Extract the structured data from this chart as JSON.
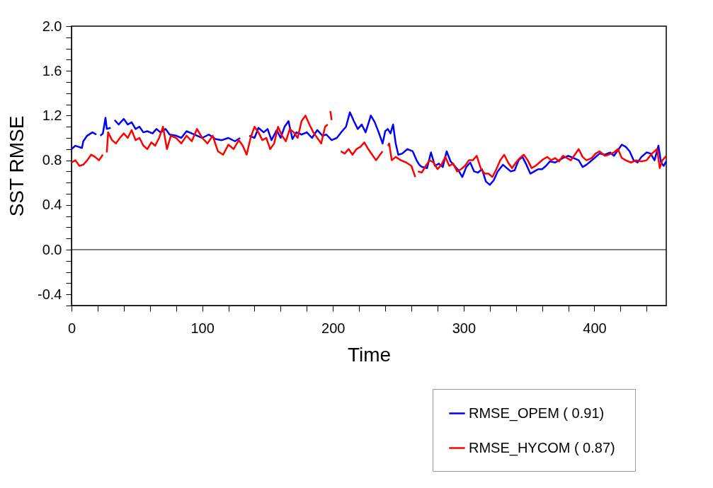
{
  "chart_data": {
    "type": "line",
    "xlabel": "Time",
    "ylabel": "SST RMSE",
    "xlim": [
      0,
      455
    ],
    "ylim": [
      -0.5,
      2.0
    ],
    "xticks": [
      0,
      {
        "value": 20,
        "label": null
      },
      {
        "value": 40,
        "label": null
      },
      {
        "value": 60,
        "label": null
      },
      {
        "value": 80,
        "label": null
      },
      100,
      {
        "value": 120,
        "label": null
      },
      {
        "value": 140,
        "label": null
      },
      {
        "value": 160,
        "label": null
      },
      {
        "value": 180,
        "label": null
      },
      200,
      {
        "value": 220,
        "label": null
      },
      {
        "value": 240,
        "label": null
      },
      {
        "value": 260,
        "label": null
      },
      {
        "value": 280,
        "label": null
      },
      300,
      {
        "value": 320,
        "label": null
      },
      {
        "value": 340,
        "label": null
      },
      {
        "value": 360,
        "label": null
      },
      {
        "value": 380,
        "label": null
      },
      400,
      {
        "value": 420,
        "label": null
      },
      {
        "value": 440,
        "label": null
      }
    ],
    "yticks": [
      {
        "value": -0.5,
        "label": null
      },
      {
        "value": -0.4,
        "label": "-0.4"
      },
      {
        "value": -0.3,
        "label": null
      },
      {
        "value": -0.2,
        "label": null
      },
      {
        "value": -0.1,
        "label": null
      },
      {
        "value": 0,
        "label": "0.0"
      },
      {
        "value": 0.1,
        "label": null
      },
      {
        "value": 0.2,
        "label": null
      },
      {
        "value": 0.3,
        "label": null
      },
      {
        "value": 0.4,
        "label": "0.4"
      },
      {
        "value": 0.5,
        "label": null
      },
      {
        "value": 0.6,
        "label": null
      },
      {
        "value": 0.7,
        "label": null
      },
      {
        "value": 0.8,
        "label": "0.8"
      },
      {
        "value": 0.9,
        "label": null
      },
      {
        "value": 1.0,
        "label": null
      },
      {
        "value": 1.1,
        "label": null
      },
      {
        "value": 1.2,
        "label": "1.2"
      },
      {
        "value": 1.3,
        "label": null
      },
      {
        "value": 1.4,
        "label": null
      },
      {
        "value": 1.5,
        "label": null
      },
      {
        "value": 1.6,
        "label": "1.6"
      },
      {
        "value": 1.7,
        "label": null
      },
      {
        "value": 1.8,
        "label": null
      },
      {
        "value": 1.9,
        "label": null
      },
      {
        "value": 2.0,
        "label": "2.0"
      }
    ],
    "grid": false,
    "legend": "bottom right",
    "marker": "none",
    "line_style": "solid",
    "ref_lines": [
      {
        "axis": "y",
        "value": 0,
        "label": null,
        "color": "#000000"
      }
    ],
    "series": [
      {
        "name": "RMSE_OPEM (  0.91)",
        "color": "#0000ff",
        "x": [
          0,
          3,
          8,
          9,
          12,
          16,
          19,
          20,
          22,
          24,
          26,
          27,
          30,
          31,
          33,
          36,
          40,
          43,
          46,
          49,
          52,
          55,
          58,
          62,
          65,
          68,
          72,
          75,
          80,
          84,
          88,
          92,
          96,
          100,
          105,
          110,
          115,
          120,
          125,
          129,
          132,
          136,
          140,
          143,
          147,
          150,
          153,
          157,
          160,
          163,
          166,
          169,
          172,
          176,
          180,
          184,
          188,
          192,
          195,
          199,
          203,
          207,
          210,
          213,
          216,
          219,
          222,
          225,
          229,
          232,
          235,
          238,
          240,
          242,
          244,
          246,
          248,
          250,
          253,
          257,
          261,
          264,
          266,
          268,
          272,
          275,
          278,
          281,
          284,
          287,
          290,
          293,
          296,
          299,
          302,
          305,
          308,
          311,
          314,
          317,
          320,
          323,
          326,
          330,
          333,
          336,
          339,
          342,
          345,
          348,
          351,
          354,
          357,
          360,
          363,
          366,
          370,
          373,
          376,
          380,
          384,
          388,
          391,
          394,
          397,
          400,
          404,
          408,
          412,
          415,
          418,
          421,
          424,
          427,
          430,
          433,
          436,
          440,
          443,
          446,
          449,
          451,
          453,
          455
        ],
        "values": [
          0.9,
          0.93,
          0.91,
          0.97,
          1.02,
          1.05,
          1.03,
          null,
          1.02,
          1.04,
          1.18,
          1.08,
          1.09,
          null,
          1.16,
          1.12,
          1.17,
          1.12,
          1.14,
          1.08,
          1.1,
          1.05,
          1.06,
          1.04,
          1.08,
          1.05,
          1.08,
          1.03,
          1.02,
          1.0,
          1.06,
          1.04,
          1.02,
          1.0,
          1.03,
          0.99,
          0.98,
          1.0,
          0.97,
          1.0,
          null,
          1.02,
          1.0,
          1.09,
          1.05,
          1.08,
          0.98,
          1.07,
          1.0,
          1.1,
          1.15,
          0.99,
          1.05,
          1.03,
          1.05,
          1.0,
          1.07,
          1.02,
          1.03,
          0.98,
          1.0,
          1.06,
          1.1,
          1.23,
          1.15,
          1.08,
          1.12,
          1.05,
          1.2,
          1.14,
          1.05,
          0.95,
          1.06,
          1.08,
          1.04,
          1.12,
          0.95,
          0.85,
          0.86,
          0.9,
          0.88,
          0.8,
          0.76,
          0.74,
          0.73,
          0.87,
          0.75,
          0.77,
          0.74,
          0.88,
          0.79,
          0.75,
          0.71,
          0.65,
          0.74,
          0.78,
          0.7,
          0.69,
          0.72,
          0.61,
          0.58,
          0.62,
          0.7,
          0.76,
          0.73,
          0.7,
          0.71,
          0.8,
          0.83,
          0.76,
          0.68,
          0.7,
          0.72,
          0.72,
          0.75,
          0.79,
          0.78,
          0.8,
          0.82,
          0.84,
          0.82,
          0.8,
          0.74,
          0.76,
          0.79,
          0.82,
          0.86,
          0.85,
          0.87,
          0.84,
          0.89,
          0.94,
          0.92,
          0.88,
          0.8,
          0.78,
          0.83,
          0.87,
          0.86,
          0.8,
          0.93,
          0.78,
          0.75,
          0.79
        ]
      },
      {
        "name": "RMSE_HYCOM (  0.87)",
        "color": "#ff0000",
        "x": [
          0,
          3,
          6,
          9,
          12,
          15,
          18,
          21,
          24,
          25,
          27,
          28,
          31,
          34,
          37,
          40,
          43,
          46,
          49,
          52,
          55,
          58,
          61,
          64,
          67,
          70,
          73,
          76,
          80,
          84,
          88,
          92,
          96,
          100,
          104,
          108,
          112,
          116,
          120,
          124,
          128,
          131,
          134,
          137,
          140,
          143,
          146,
          149,
          152,
          155,
          158,
          161,
          164,
          167,
          170,
          173,
          176,
          179,
          182,
          185,
          188,
          191,
          194,
          196,
          197,
          198,
          199,
          202,
          206,
          209,
          212,
          215,
          218,
          221,
          224,
          227,
          230,
          233,
          236,
          238,
          240,
          242,
          243,
          245,
          248,
          252,
          256,
          260,
          263,
          264,
          265,
          268,
          271,
          274,
          277,
          280,
          283,
          286,
          289,
          292,
          295,
          298,
          301,
          304,
          307,
          310,
          313,
          316,
          319,
          322,
          325,
          328,
          331,
          334,
          337,
          340,
          343,
          346,
          349,
          352,
          355,
          358,
          361,
          364,
          367,
          370,
          373,
          376,
          379,
          382,
          385,
          388,
          391,
          394,
          398,
          401,
          404,
          408,
          411,
          415,
          418,
          421,
          424,
          428,
          432,
          436,
          440,
          444,
          448,
          450,
          452,
          455
        ],
        "values": [
          0.78,
          0.8,
          0.75,
          0.76,
          0.8,
          0.85,
          0.83,
          0.8,
          0.85,
          null,
          0.87,
          1.05,
          0.98,
          0.95,
          1.0,
          1.04,
          1.0,
          1.07,
          0.98,
          1.0,
          0.93,
          0.9,
          0.96,
          0.93,
          1.0,
          1.1,
          0.9,
          1.02,
          1.0,
          0.95,
          1.02,
          0.97,
          1.08,
          1.0,
          0.95,
          1.02,
          0.88,
          0.85,
          0.94,
          0.9,
          0.98,
          0.93,
          0.85,
          1.0,
          1.1,
          1.05,
          0.98,
          1.0,
          0.9,
          0.95,
          1.1,
          1.02,
          0.97,
          1.08,
          1.05,
          1.0,
          1.15,
          1.2,
          1.12,
          1.05,
          1.0,
          0.95,
          1.1,
          1.12,
          null,
          1.24,
          1.16,
          null,
          0.88,
          0.86,
          0.9,
          0.85,
          0.9,
          0.92,
          0.96,
          0.9,
          0.85,
          0.8,
          0.85,
          0.88,
          null,
          0.93,
          0.95,
          0.8,
          0.83,
          0.8,
          0.78,
          0.75,
          0.65,
          null,
          0.7,
          0.69,
          0.75,
          0.8,
          0.78,
          0.72,
          0.76,
          0.83,
          0.75,
          0.77,
          0.7,
          0.72,
          0.75,
          0.8,
          0.8,
          0.84,
          0.73,
          0.68,
          0.68,
          0.65,
          0.72,
          0.8,
          0.85,
          0.78,
          0.73,
          0.78,
          0.82,
          0.85,
          0.8,
          0.73,
          0.75,
          0.78,
          0.81,
          0.83,
          0.8,
          0.82,
          0.79,
          0.84,
          0.82,
          0.8,
          0.85,
          0.9,
          0.83,
          0.8,
          0.82,
          0.86,
          0.88,
          0.84,
          0.85,
          0.87,
          0.9,
          0.82,
          0.8,
          0.78,
          0.8,
          0.79,
          0.8,
          0.86,
          0.9,
          0.73,
          0.8,
          0.84
        ]
      }
    ]
  }
}
